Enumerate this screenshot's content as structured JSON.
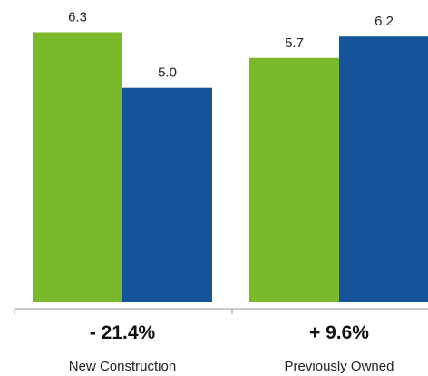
{
  "chart_data": {
    "type": "bar",
    "categories": [
      "New Construction",
      "Previously Owned"
    ],
    "series": [
      {
        "color": "#7ab929",
        "values": [
          6.3,
          5.7
        ]
      },
      {
        "color": "#15549a",
        "values": [
          5.0,
          6.2
        ]
      }
    ],
    "value_labels": [
      [
        "6.3",
        "5.0"
      ],
      [
        "5.7",
        "6.2"
      ]
    ],
    "changes": [
      "- 21.4%",
      "+ 9.6%"
    ],
    "ylim": [
      0,
      6.5
    ],
    "grid": false,
    "legend": "none"
  },
  "colors": {
    "axis": "#999999",
    "text": "#222222"
  }
}
